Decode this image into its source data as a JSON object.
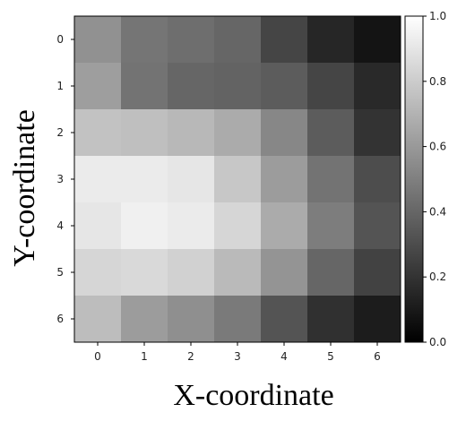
{
  "chart_data": {
    "type": "heatmap",
    "colormap": "gray",
    "xlabel": "X-coordinate",
    "ylabel": "Y-coordinate",
    "x_ticks": [
      "0",
      "1",
      "2",
      "3",
      "4",
      "5",
      "6"
    ],
    "y_ticks": [
      "0",
      "1",
      "2",
      "3",
      "4",
      "5",
      "6"
    ],
    "colorbar": {
      "range": [
        0.0,
        1.0
      ],
      "tick_values": [
        0.0,
        0.2,
        0.4,
        0.6,
        0.8,
        1.0
      ],
      "tick_labels": [
        "0.0",
        "0.2",
        "0.4",
        "0.6",
        "0.8",
        "1.0"
      ]
    },
    "values": [
      [
        0.57,
        0.46,
        0.43,
        0.4,
        0.27,
        0.15,
        0.08
      ],
      [
        0.62,
        0.45,
        0.4,
        0.39,
        0.36,
        0.27,
        0.16
      ],
      [
        0.76,
        0.75,
        0.72,
        0.67,
        0.53,
        0.36,
        0.2
      ],
      [
        0.92,
        0.92,
        0.9,
        0.78,
        0.61,
        0.45,
        0.3
      ],
      [
        0.9,
        0.94,
        0.92,
        0.84,
        0.67,
        0.49,
        0.33
      ],
      [
        0.84,
        0.85,
        0.82,
        0.73,
        0.58,
        0.4,
        0.26
      ],
      [
        0.74,
        0.61,
        0.56,
        0.48,
        0.33,
        0.19,
        0.11
      ]
    ]
  }
}
